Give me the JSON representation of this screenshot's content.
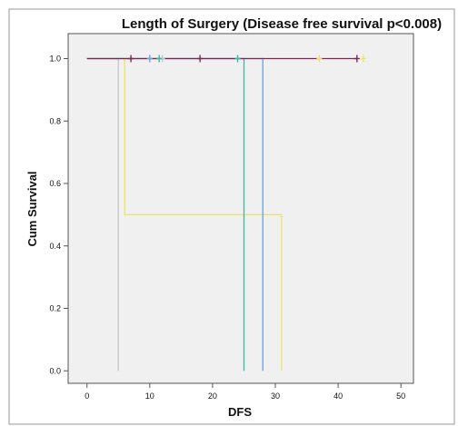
{
  "chart_data": {
    "type": "line",
    "title": "Length of Surgery (Disease free survival p<0.008)",
    "xlabel": "DFS",
    "ylabel": "Cum Survival",
    "xlim": [
      -3,
      52
    ],
    "ylim": [
      -0.04,
      1.08
    ],
    "x_ticks": [
      "0",
      "10",
      "20",
      "30",
      "40",
      "50"
    ],
    "y_ticks": [
      "0.0",
      "0.2",
      "0.4",
      "0.6",
      "0.8",
      "1.0"
    ],
    "x_tick_values": [
      0,
      10,
      20,
      30,
      40,
      50
    ],
    "y_tick_values": [
      0,
      0.2,
      0.4,
      0.6,
      0.8,
      1.0
    ],
    "grid": false,
    "series": [
      {
        "color": "#c8c8c8",
        "steps": [
          [
            0,
            1.0
          ],
          [
            5,
            1.0
          ],
          [
            5,
            0.0
          ]
        ],
        "censored": [
          [
            12,
            1.0
          ]
        ]
      },
      {
        "color": "#eee36a",
        "steps": [
          [
            0,
            1.0
          ],
          [
            6,
            1.0
          ],
          [
            6,
            0.5
          ],
          [
            31,
            0.5
          ],
          [
            31,
            0.0
          ]
        ],
        "censored": [
          [
            44,
            1.0
          ],
          [
            37,
            1.0
          ]
        ]
      },
      {
        "color": "#3fb7a2",
        "steps": [
          [
            0,
            1.0
          ],
          [
            25,
            1.0
          ],
          [
            25,
            0.0
          ]
        ],
        "censored": [
          [
            11.5,
            1.0
          ],
          [
            24,
            1.0
          ]
        ]
      },
      {
        "color": "#6f9fd6",
        "steps": [
          [
            0,
            1.0
          ],
          [
            28,
            1.0
          ],
          [
            28,
            0.0
          ]
        ],
        "censored": [
          [
            10,
            1.0
          ]
        ]
      },
      {
        "color": "#7a2a52",
        "steps": [
          [
            0,
            1.0
          ],
          [
            43,
            1.0
          ]
        ],
        "censored": [
          [
            7,
            1.0
          ],
          [
            18,
            1.0
          ],
          [
            43,
            1.0
          ]
        ]
      }
    ]
  },
  "colors": {
    "plot_background": "#f0f0f0",
    "frame": "#555555"
  }
}
